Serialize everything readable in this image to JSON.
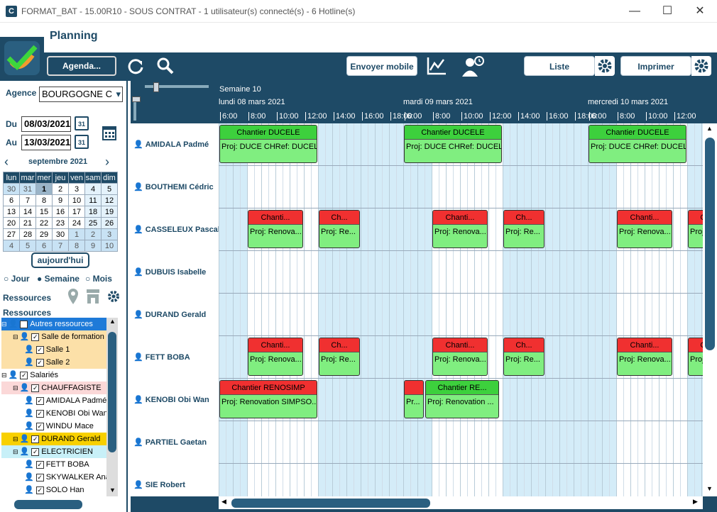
{
  "window": {
    "title": "FORMAT_BAT - 15.00R10 - SOUS CONTRAT - 1 utilisateur(s) connecté(s) - 6 Hotline(s)",
    "app_icon": "C",
    "minimize": "—",
    "maximize": "☐",
    "close": "✕"
  },
  "header": {
    "title": "Planning"
  },
  "toolbar": {
    "agenda": "Agenda...",
    "envoyer_mobile": "Envoyer mobile",
    "liste": "Liste",
    "imprimer": "Imprimer"
  },
  "left": {
    "agence_label": "Agence",
    "agence_value": "BOURGOGNE C",
    "du_label": "Du",
    "du_value": "08/03/2021",
    "au_label": "Au",
    "au_value": "13/03/2021",
    "month_label": "septembre 2021",
    "weekdays": [
      "lun",
      "mar",
      "mer",
      "jeu",
      "ven",
      "sam",
      "dim"
    ],
    "weeks": [
      [
        "30",
        "31",
        "1",
        "2",
        "3",
        "4",
        "5"
      ],
      [
        "6",
        "7",
        "8",
        "9",
        "10",
        "11",
        "12"
      ],
      [
        "13",
        "14",
        "15",
        "16",
        "17",
        "18",
        "19"
      ],
      [
        "20",
        "21",
        "22",
        "23",
        "24",
        "25",
        "26"
      ],
      [
        "27",
        "28",
        "29",
        "30",
        "1",
        "2",
        "3"
      ],
      [
        "4",
        "5",
        "6",
        "7",
        "8",
        "9",
        "10"
      ]
    ],
    "today_btn": "aujourd'hui",
    "views": [
      "Jour",
      "Semaine",
      "Mois"
    ],
    "ressources_title": "Ressources",
    "ressources_sub": "Ressources",
    "tree": [
      {
        "label": "Autres ressources",
        "level": 0,
        "bg": "#1e7ad8",
        "color": "#fff"
      },
      {
        "label": "Salle de formation",
        "level": 1,
        "bg": "#fce0a8",
        "color": "#000"
      },
      {
        "label": "Salle 1",
        "level": 2,
        "bg": "#fce0a8",
        "color": "#000"
      },
      {
        "label": "Salle 2",
        "level": 2,
        "bg": "#fce0a8",
        "color": "#000"
      },
      {
        "label": "Salariés",
        "level": 0,
        "bg": "#fff",
        "color": "#000"
      },
      {
        "label": "CHAUFFAGISTE",
        "level": 1,
        "bg": "#fbd8d8",
        "color": "#000"
      },
      {
        "label": "AMIDALA Padmé",
        "level": 2,
        "bg": "#fff",
        "color": "#000"
      },
      {
        "label": "KENOBI Obi Wan",
        "level": 2,
        "bg": "#fff",
        "color": "#000"
      },
      {
        "label": "WINDU Mace",
        "level": 2,
        "bg": "#fff",
        "color": "#000"
      },
      {
        "label": "DURAND Gerald",
        "level": 1,
        "bg": "#f8d000",
        "color": "#000"
      },
      {
        "label": "ELECTRICIEN",
        "level": 1,
        "bg": "#c8f0f8",
        "color": "#000"
      },
      {
        "label": "FETT BOBA",
        "level": 2,
        "bg": "#fff",
        "color": "#000"
      },
      {
        "label": "SKYWALKER Anakin",
        "level": 2,
        "bg": "#fff",
        "color": "#000"
      },
      {
        "label": "SOLO Han",
        "level": 2,
        "bg": "#fff",
        "color": "#000"
      }
    ]
  },
  "grid": {
    "week": "Semaine 10",
    "days": [
      "lundi 08 mars 2021",
      "mardi 09 mars 2021",
      "mercredi 10 mars 2021"
    ],
    "hours": [
      "6:00",
      "8:00",
      "10:00",
      "12:00",
      "14:00",
      "16:00",
      "18:00"
    ],
    "resources": [
      "AMIDALA Padmé",
      "BOUTHEMI Cédric",
      "CASSELEUX Pascal",
      "DUBUIS Isabelle",
      "DURAND Gerald",
      "FETT BOBA",
      "KENOBI Obi Wan",
      "PARTIEL Gaetan",
      "SIE Robert"
    ],
    "events": [
      {
        "row": 0,
        "day": 0,
        "start": 6,
        "end": 13,
        "title": "Chantier DUCELE",
        "body": "Proj: DUCE CHRef: DUCELE",
        "color": "green"
      },
      {
        "row": 0,
        "day": 1,
        "start": 6,
        "end": 13,
        "title": "Chantier DUCELE",
        "body": "Proj: DUCE CHRef: DUCELE",
        "color": "green"
      },
      {
        "row": 0,
        "day": 2,
        "start": 6,
        "end": 13,
        "title": "Chantier DUCELE",
        "body": "Proj: DUCE CHRef: DUCELE",
        "color": "green"
      },
      {
        "row": 2,
        "day": 0,
        "start": 8,
        "end": 12,
        "title": "Chanti...",
        "body": "Proj: Renova...",
        "color": "red"
      },
      {
        "row": 2,
        "day": 0,
        "start": 13,
        "end": 16,
        "title": "Ch...",
        "body": "Proj: Re...",
        "color": "red"
      },
      {
        "row": 2,
        "day": 1,
        "start": 8,
        "end": 12,
        "title": "Chanti...",
        "body": "Proj: Renova...",
        "color": "red"
      },
      {
        "row": 2,
        "day": 1,
        "start": 13,
        "end": 16,
        "title": "Ch...",
        "body": "Proj: Re...",
        "color": "red"
      },
      {
        "row": 2,
        "day": 2,
        "start": 8,
        "end": 12,
        "title": "Chanti...",
        "body": "Proj: Renova...",
        "color": "red"
      },
      {
        "row": 2,
        "day": 2,
        "start": 13,
        "end": 16,
        "title": "Ch...",
        "body": "Proj: Re...",
        "color": "red"
      },
      {
        "row": 5,
        "day": 0,
        "start": 8,
        "end": 12,
        "title": "Chanti...",
        "body": "Proj: Renova...",
        "color": "red"
      },
      {
        "row": 5,
        "day": 0,
        "start": 13,
        "end": 16,
        "title": "Ch...",
        "body": "Proj: Re...",
        "color": "red"
      },
      {
        "row": 5,
        "day": 1,
        "start": 8,
        "end": 12,
        "title": "Chanti...",
        "body": "Proj: Renova...",
        "color": "red"
      },
      {
        "row": 5,
        "day": 1,
        "start": 13,
        "end": 16,
        "title": "Ch...",
        "body": "Proj: Re...",
        "color": "red"
      },
      {
        "row": 5,
        "day": 2,
        "start": 8,
        "end": 12,
        "title": "Chanti...",
        "body": "Proj: Renova...",
        "color": "red"
      },
      {
        "row": 5,
        "day": 2,
        "start": 13,
        "end": 16,
        "title": "Ch...",
        "body": "Proj: Re...",
        "color": "red"
      },
      {
        "row": 6,
        "day": 0,
        "start": 6,
        "end": 13,
        "title": "Chantier RENOSIMP",
        "body": "Proj: Renovation SIMPSO...",
        "color": "red"
      },
      {
        "row": 6,
        "day": 1,
        "start": 6,
        "end": 7.5,
        "title": "",
        "body": "Pr...",
        "color": "red"
      },
      {
        "row": 6,
        "day": 1,
        "start": 7.5,
        "end": 12.8,
        "title": "Chantier RE...",
        "body": "Proj: Renovation ...",
        "color": "green"
      }
    ]
  }
}
